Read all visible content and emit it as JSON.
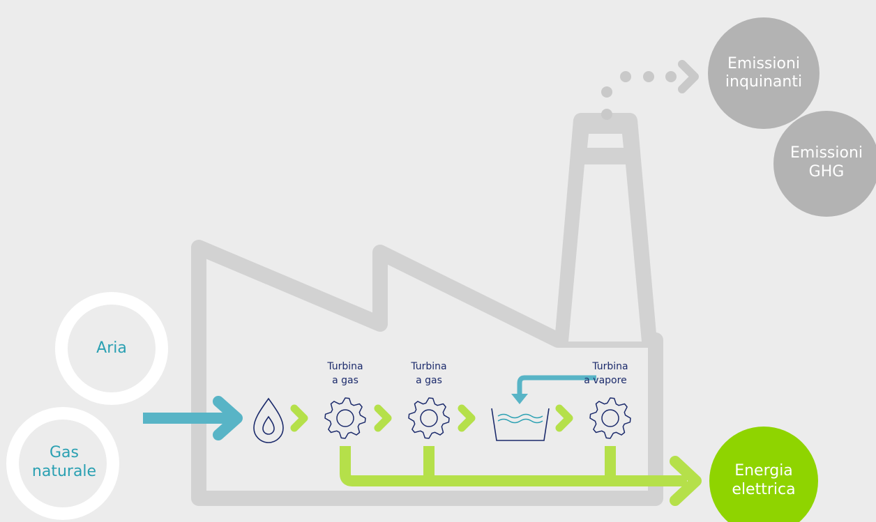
{
  "inputs": [
    {
      "lines": [
        "Aria"
      ]
    },
    {
      "lines": [
        "Gas",
        "naturale"
      ]
    }
  ],
  "stages": [
    {
      "lines": [
        "Turbina",
        "a gas"
      ]
    },
    {
      "lines": [
        "Turbina",
        "a gas"
      ]
    },
    {
      "lines": [
        "Turbina",
        "a vapore"
      ]
    }
  ],
  "outputs": [
    {
      "lines": [
        "Emissioni",
        "inquinanti"
      ]
    },
    {
      "lines": [
        "Emissioni",
        "GHG"
      ]
    },
    {
      "lines": [
        "Energia",
        "elettrica"
      ]
    }
  ]
}
